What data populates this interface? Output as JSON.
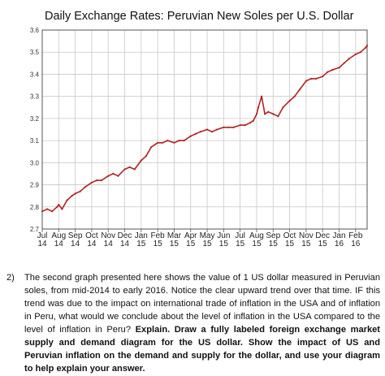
{
  "chart_data": {
    "type": "line",
    "title": "Daily Exchange Rates: Peruvian New Soles per U.S. Dollar",
    "ylim": [
      2.7,
      3.6
    ],
    "yticks": [
      "2.7",
      "2.8",
      "2.9",
      "3.0",
      "3.1",
      "3.2",
      "3.3",
      "3.4",
      "3.5",
      "3.6"
    ],
    "xlim": [
      0,
      19.7
    ],
    "xticks": [
      {
        "month": "Jul",
        "year": "14"
      },
      {
        "month": "Aug",
        "year": "14"
      },
      {
        "month": "Sep",
        "year": "14"
      },
      {
        "month": "Oct",
        "year": "14"
      },
      {
        "month": "Nov",
        "year": "14"
      },
      {
        "month": "Dec",
        "year": "14"
      },
      {
        "month": "Jan",
        "year": "15"
      },
      {
        "month": "Feb",
        "year": "15"
      },
      {
        "month": "Mar",
        "year": "15"
      },
      {
        "month": "Apr",
        "year": "15"
      },
      {
        "month": "May",
        "year": "15"
      },
      {
        "month": "Jun",
        "year": "15"
      },
      {
        "month": "Jul",
        "year": "15"
      },
      {
        "month": "Aug",
        "year": "15"
      },
      {
        "month": "Sep",
        "year": "15"
      },
      {
        "month": "Oct",
        "year": "15"
      },
      {
        "month": "Nov",
        "year": "15"
      },
      {
        "month": "Dec",
        "year": "15"
      },
      {
        "month": "Jan",
        "year": "16"
      },
      {
        "month": "Feb",
        "year": "16"
      }
    ],
    "grid": true,
    "series": [
      {
        "color": "#b22222",
        "x": [
          0,
          0.3,
          0.6,
          0.9,
          1.0,
          1.2,
          1.5,
          1.8,
          2.0,
          2.3,
          2.6,
          3.0,
          3.3,
          3.6,
          4.0,
          4.3,
          4.6,
          5.0,
          5.3,
          5.6,
          6.0,
          6.3,
          6.6,
          7.0,
          7.3,
          7.6,
          8.0,
          8.3,
          8.6,
          9.0,
          9.3,
          9.6,
          10.0,
          10.3,
          10.6,
          11.0,
          11.3,
          11.6,
          12.0,
          12.3,
          12.6,
          12.8,
          13.0,
          13.1,
          13.3,
          13.5,
          13.7,
          14.0,
          14.3,
          14.6,
          15.0,
          15.3,
          15.6,
          16.0,
          16.3,
          16.6,
          17.0,
          17.3,
          17.6,
          18.0,
          18.3,
          18.6,
          19.0,
          19.3,
          19.6,
          19.7
        ],
        "y": [
          2.78,
          2.79,
          2.78,
          2.8,
          2.81,
          2.79,
          2.83,
          2.85,
          2.86,
          2.87,
          2.89,
          2.91,
          2.92,
          2.92,
          2.94,
          2.95,
          2.94,
          2.97,
          2.98,
          2.97,
          3.01,
          3.03,
          3.07,
          3.09,
          3.09,
          3.1,
          3.09,
          3.1,
          3.1,
          3.12,
          3.13,
          3.14,
          3.15,
          3.14,
          3.15,
          3.16,
          3.16,
          3.16,
          3.17,
          3.17,
          3.18,
          3.19,
          3.22,
          3.25,
          3.3,
          3.22,
          3.23,
          3.22,
          3.21,
          3.25,
          3.28,
          3.3,
          3.33,
          3.37,
          3.38,
          3.38,
          3.39,
          3.41,
          3.42,
          3.43,
          3.45,
          3.47,
          3.49,
          3.5,
          3.52,
          3.53
        ]
      }
    ]
  },
  "question": {
    "number": "2)",
    "text": "The second graph presented here shows the value of 1 US dollar measured in Peruvian soles, from mid-2014 to early 2016. Notice the clear upward trend over that time. IF this trend was due to the impact on international trade of inflation in the USA and of inflation in Peru, what would we conclude about the level of inflation in the USA compared to the level of inflation in Peru? ",
    "bold_text": "Explain. Draw a fully labeled foreign exchange market supply and demand diagram for the US dollar. Show the impact of US and Peruvian inflation on the demand and supply for the dollar, and use your diagram to help explain your answer."
  },
  "colors": {
    "line": "#b22222",
    "grid": "#c8c8c8",
    "frame": "#555555"
  }
}
